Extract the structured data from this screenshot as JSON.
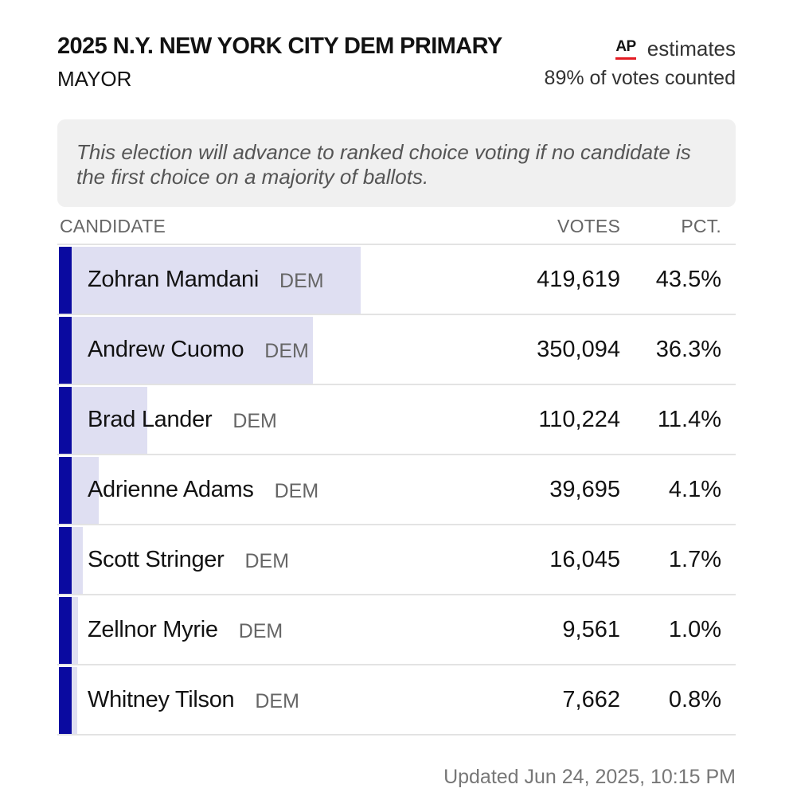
{
  "header": {
    "title": "2025 N.Y. NEW YORK CITY DEM PRIMARY",
    "subtitle": "MAYOR",
    "ap_logo": "AP",
    "estimates_label": "estimates",
    "votes_counted": "89% of votes counted"
  },
  "notice": {
    "text": "This election will advance to ranked choice voting if no candidate is the first choice on a majority of ballots."
  },
  "table": {
    "headers": {
      "candidate": "CANDIDATE",
      "votes": "VOTES",
      "pct": "PCT."
    },
    "rows": [
      {
        "name": "Zohran Mamdani",
        "party": "DEM",
        "votes": "419,619",
        "pct": "43.5%",
        "bar_share": 0.435
      },
      {
        "name": "Andrew Cuomo",
        "party": "DEM",
        "votes": "350,094",
        "pct": "36.3%",
        "bar_share": 0.363
      },
      {
        "name": "Brad Lander",
        "party": "DEM",
        "votes": "110,224",
        "pct": "11.4%",
        "bar_share": 0.114
      },
      {
        "name": "Adrienne Adams",
        "party": "DEM",
        "votes": "39,695",
        "pct": "4.1%",
        "bar_share": 0.041
      },
      {
        "name": "Scott Stringer",
        "party": "DEM",
        "votes": "16,045",
        "pct": "1.7%",
        "bar_share": 0.017
      },
      {
        "name": "Zellnor Myrie",
        "party": "DEM",
        "votes": "9,561",
        "pct": "1.0%",
        "bar_share": 0.01
      },
      {
        "name": "Whitney Tilson",
        "party": "DEM",
        "votes": "7,662",
        "pct": "0.8%",
        "bar_share": 0.008
      }
    ]
  },
  "footer": {
    "updated": "Updated  Jun 24, 2025, 10:15 PM"
  },
  "colors": {
    "accent": "#0a0aa0",
    "bar": "#dfdff2",
    "ap_underline": "#e31b23",
    "notice_bg": "#f0f0f0"
  }
}
